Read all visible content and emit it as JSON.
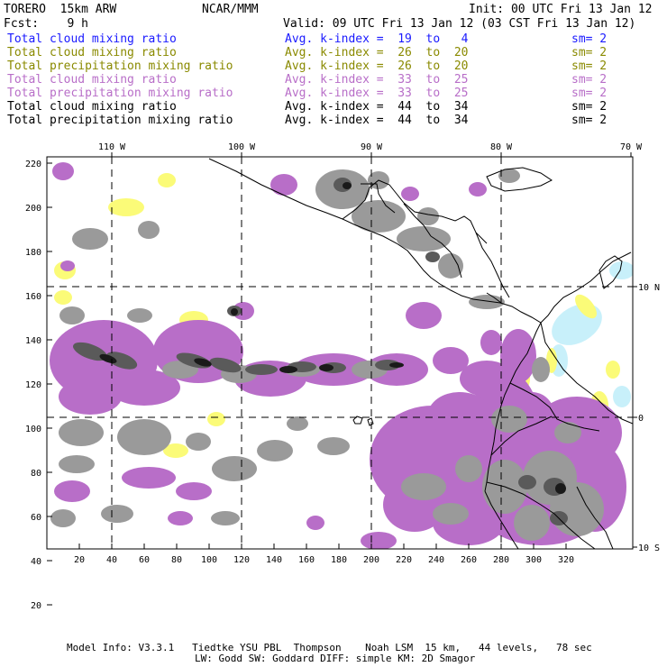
{
  "header": {
    "model_title": "TORERO  15km ARW",
    "org": "NCAR/MMM",
    "init": "Init: 00 UTC Fri 13 Jan 12",
    "fcst": "Fcst:    9 h",
    "valid": "Valid: 09 UTC Fri 13 Jan 12 (03 CST Fri 13 Jan 12)"
  },
  "legend": [
    {
      "field": "Total cloud mixing ratio",
      "kindex": "Avg. k-index =  19  to   4",
      "sm": "sm= 2",
      "color": "#1a1aff"
    },
    {
      "field": "Total cloud mixing ratio",
      "kindex": "Avg. k-index =  26  to  20",
      "sm": "sm= 2",
      "color": "#8a8a00"
    },
    {
      "field": "Total precipitation mixing ratio",
      "kindex": "Avg. k-index =  26  to  20",
      "sm": "sm= 2",
      "color": "#8a8a00"
    },
    {
      "field": "Total cloud mixing ratio",
      "kindex": "Avg. k-index =  33  to  25",
      "sm": "sm= 2",
      "color": "#b86ec8"
    },
    {
      "field": "Total precipitation mixing ratio",
      "kindex": "Avg. k-index =  33  to  25",
      "sm": "sm= 2",
      "color": "#b86ec8"
    },
    {
      "field": "Total cloud mixing ratio",
      "kindex": "Avg. k-index =  44  to  34",
      "sm": "sm= 2",
      "color": "#000000"
    },
    {
      "field": "Total precipitation mixing ratio",
      "kindex": "Avg. k-index =  44  to  34",
      "sm": "sm= 2",
      "color": "#000000"
    }
  ],
  "map": {
    "lon_labels": [
      "110 W",
      "100 W",
      "90 W",
      "80 W",
      "70 W"
    ],
    "lat_labels": [
      "10 N",
      "0",
      "10 S"
    ],
    "x_ticks": [
      "20",
      "40",
      "60",
      "80",
      "100",
      "120",
      "140",
      "160",
      "180",
      "200",
      "220",
      "240",
      "260",
      "280",
      "300",
      "320"
    ],
    "y_ticks": [
      "220",
      "200",
      "180",
      "160",
      "140",
      "120",
      "100",
      "80",
      "60",
      "40",
      "20"
    ],
    "colors": {
      "purple": "#b86ec8",
      "gray": "#9a9a9a",
      "darkgray": "#5a5a5a",
      "black": "#1a1a1a",
      "yellow": "#fbfb78",
      "cyan": "#c8f0fa"
    }
  },
  "footer": {
    "line1": "Model Info: V3.3.1   Tiedtke YSU PBL  Thompson    Noah LSM  15 km,   44 levels,   78 sec",
    "line2": "LW: Godd SW: Goddard DIFF: simple KM: 2D Smagor"
  }
}
